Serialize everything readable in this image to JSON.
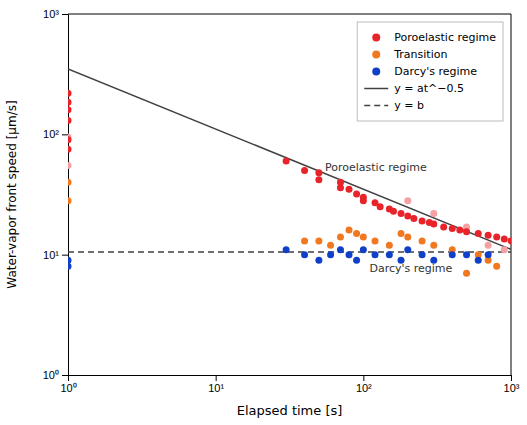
{
  "chart_data": {
    "type": "scatter",
    "x_label": "Elapsed time [s]",
    "y_label": "Water-vapor front speed [μm/s]",
    "log": true,
    "xlim": [
      1,
      1000
    ],
    "ylim": [
      1,
      1000
    ],
    "xticks": [
      {
        "value": 1,
        "label": "10⁰"
      },
      {
        "value": 10,
        "label": "10¹"
      },
      {
        "value": 100,
        "label": "10²"
      },
      {
        "value": 1000,
        "label": "10³"
      }
    ],
    "yticks": [
      {
        "value": 1,
        "label": "10⁰"
      },
      {
        "value": 10,
        "label": "10¹"
      },
      {
        "value": 100,
        "label": "10²"
      },
      {
        "value": 1000,
        "label": "10³"
      }
    ],
    "grid": false,
    "legend": "upper right",
    "series": [
      {
        "type": "scatter",
        "marker": "circle",
        "color": "#f5a0a3",
        "x": [
          1.0,
          1.0,
          200,
          300,
          500,
          700,
          900
        ],
        "values": [
          95,
          55,
          28,
          22,
          17,
          12,
          11
        ]
      },
      {
        "name": "Poroelastic regime",
        "type": "scatter",
        "marker": "circle",
        "color": "#e8232a",
        "x": [
          1.0,
          1.0,
          1.0,
          1.0,
          1.0,
          1.0,
          30,
          40,
          50,
          50,
          70,
          70,
          80,
          90,
          100,
          100,
          120,
          130,
          150,
          160,
          180,
          200,
          220,
          250,
          280,
          300,
          350,
          400,
          450,
          500,
          600,
          700,
          800,
          900,
          1000
        ],
        "values": [
          220,
          185,
          160,
          130,
          90,
          75,
          60,
          50,
          48,
          42,
          40,
          36,
          35,
          32,
          30,
          28,
          27,
          25,
          24,
          23,
          22,
          21,
          20,
          19,
          18.5,
          18,
          17,
          16.5,
          16,
          15.5,
          15,
          14.5,
          14,
          13.5,
          13
        ]
      },
      {
        "name": "Transition",
        "type": "scatter",
        "marker": "circle",
        "color": "#f07820",
        "x": [
          1.0,
          1.0,
          40,
          50,
          60,
          70,
          80,
          90,
          100,
          120,
          150,
          180,
          200,
          250,
          300,
          400,
          500,
          600,
          700,
          800
        ],
        "values": [
          40,
          28,
          13,
          13,
          12,
          14,
          16,
          15,
          14,
          13,
          12,
          15,
          14,
          13,
          12,
          11,
          7,
          10,
          9,
          8
        ]
      },
      {
        "name": "Darcy's regime",
        "type": "scatter",
        "marker": "circle",
        "color": "#1040c8",
        "x": [
          1.0,
          1.0,
          30,
          40,
          50,
          60,
          70,
          80,
          90,
          100,
          120,
          150,
          180,
          200,
          250,
          300,
          400,
          500,
          600,
          700
        ],
        "values": [
          8,
          9,
          11,
          10,
          9,
          10,
          11,
          10,
          9,
          11,
          10,
          10,
          9,
          11,
          10,
          9,
          10,
          10,
          9,
          10
        ]
      },
      {
        "name": "y = at^−0.5",
        "type": "line",
        "line_style": "solid",
        "color": "#404040",
        "x": [
          1,
          1000
        ],
        "values": [
          350,
          11.067971810589327
        ]
      },
      {
        "name": "y = b",
        "type": "line",
        "line_style": "dashed",
        "color": "#404040",
        "x": [
          1,
          1000
        ],
        "values": [
          10.5,
          10.5
        ]
      }
    ],
    "annotations": [
      {
        "x": 55,
        "y": 50,
        "text": "Poroelastic regime"
      },
      {
        "x": 110,
        "y": 7.2,
        "text": "Darcy's regime"
      }
    ]
  }
}
